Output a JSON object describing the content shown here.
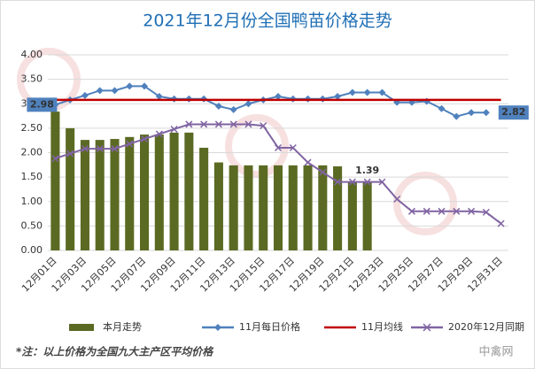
{
  "chart_data": {
    "type": "bar",
    "title": "2021年12月份全国鸭苗价格走势",
    "categories": [
      "12月01日",
      null,
      "12月03日",
      null,
      "12月05日",
      null,
      "12月07日",
      null,
      "12月09日",
      null,
      "12月11日",
      null,
      "12月13日",
      null,
      "12月15日",
      null,
      "12月17日",
      null,
      "12月19日",
      null,
      "12月21日",
      null,
      "12月23日",
      null,
      "12月25日",
      null,
      "12月27日",
      null,
      "12月29日",
      null,
      "12月31日"
    ],
    "ylim": [
      0,
      4
    ],
    "yticks": [
      {
        "value": 0,
        "label": "0.00"
      },
      {
        "value": 0.5,
        "label": "0.50"
      },
      {
        "value": 1,
        "label": "1.00"
      },
      {
        "value": 1.5,
        "label": "1.50"
      },
      {
        "value": 2,
        "label": "2.00"
      },
      {
        "value": 2.5,
        "label": "2.50"
      },
      {
        "value": 3,
        "label": "3.00"
      },
      {
        "value": 3.5,
        "label": "3.50"
      },
      {
        "value": 4,
        "label": "4.00"
      }
    ],
    "grid": true,
    "legend": "bottom",
    "series": [
      {
        "name": "本月走势",
        "type": "bar",
        "color": "#5b6a23",
        "values": [
          2.84,
          2.5,
          2.26,
          2.26,
          2.28,
          2.32,
          2.37,
          2.37,
          2.41,
          2.41,
          2.1,
          1.8,
          1.74,
          1.74,
          1.74,
          1.74,
          1.74,
          1.74,
          1.74,
          1.72,
          1.39,
          1.39,
          null,
          null,
          null,
          null,
          null,
          null,
          null,
          null,
          null
        ],
        "value_labels": [
          null,
          null,
          null,
          null,
          null,
          null,
          null,
          null,
          null,
          null,
          null,
          null,
          null,
          null,
          null,
          null,
          null,
          null,
          null,
          null,
          null,
          "1.39",
          null,
          null,
          null,
          null,
          null,
          null,
          null,
          null,
          null
        ]
      },
      {
        "name": "11月每日价格",
        "type": "line",
        "marker": "diamond",
        "color": "#4f81bd",
        "values": [
          2.98,
          3.08,
          3.17,
          3.27,
          3.27,
          3.36,
          3.36,
          3.15,
          3.1,
          3.1,
          3.1,
          2.95,
          2.88,
          3.0,
          3.08,
          3.15,
          3.1,
          3.1,
          3.1,
          3.15,
          3.23,
          3.23,
          3.23,
          3.03,
          3.03,
          3.05,
          2.9,
          2.74,
          2.82,
          2.82,
          null
        ],
        "value_labels": [
          "2.98",
          null,
          null,
          null,
          null,
          null,
          null,
          null,
          null,
          null,
          null,
          null,
          null,
          null,
          null,
          null,
          null,
          null,
          null,
          null,
          null,
          null,
          null,
          null,
          null,
          null,
          null,
          null,
          null,
          "2.82",
          null
        ]
      },
      {
        "name": "11月均线",
        "type": "line",
        "color": "#c00000",
        "values": [
          3.08,
          3.08,
          3.08,
          3.08,
          3.08,
          3.08,
          3.08,
          3.08,
          3.08,
          3.08,
          3.08,
          3.08,
          3.08,
          3.08,
          3.08,
          3.08,
          3.08,
          3.08,
          3.08,
          3.08,
          3.08,
          3.08,
          3.08,
          3.08,
          3.08,
          3.08,
          3.08,
          3.08,
          3.08,
          3.08,
          3.08
        ]
      },
      {
        "name": "2020年12月同期",
        "type": "line",
        "marker": "x",
        "color": "#8064a2",
        "values": [
          1.88,
          1.98,
          2.08,
          2.08,
          2.08,
          2.18,
          2.28,
          2.38,
          2.48,
          2.58,
          2.58,
          2.58,
          2.58,
          2.58,
          2.55,
          2.1,
          2.1,
          1.8,
          1.6,
          1.4,
          1.4,
          1.4,
          1.4,
          1.05,
          0.8,
          0.8,
          0.8,
          0.8,
          0.8,
          0.78,
          0.55
        ]
      }
    ],
    "note": "*注：以上价格为全国九大主产区平均价格",
    "watermark": "中禽网"
  }
}
